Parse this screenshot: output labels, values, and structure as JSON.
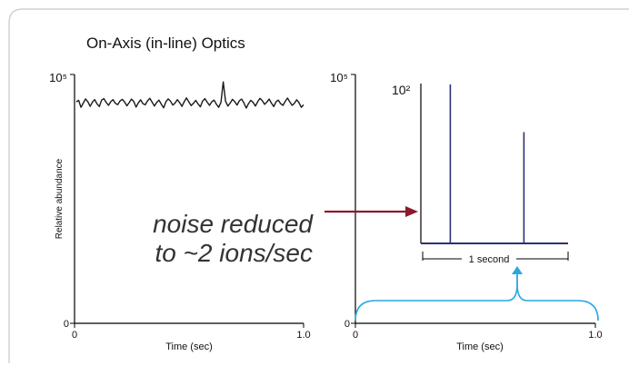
{
  "title": "On-Axis (in-line) Optics",
  "annotation": {
    "line1": "noise reduced",
    "line2": "to ~2 ions/sec"
  },
  "colors": {
    "noise_trace": "#1a1a1a",
    "ion_peaks": "#2e2e7a",
    "arrow": "#8b1a2e",
    "bracket": "#29a8e0",
    "frame": "#c8c8c8"
  },
  "chart_data": [
    {
      "type": "line",
      "title": "On-Axis (in-line) Optics",
      "xlabel": "Time (sec)",
      "ylabel": "Relative abundance",
      "xlim": [
        0,
        1.0
      ],
      "ylim": [
        0,
        100000
      ],
      "y_scale": "linear",
      "y_ticks": [
        "0",
        "10⁵"
      ],
      "x_ticks": [
        "0",
        "1.0"
      ],
      "series": [
        {
          "values": [
            89000,
            89600,
            86800,
            88500,
            90200,
            89100,
            87200,
            88900,
            89900,
            88200,
            87100,
            89700,
            90300,
            88800,
            87600,
            89100,
            89900,
            88400,
            87900,
            89300,
            90000,
            89000,
            87400,
            88700,
            90100,
            89200,
            86900,
            88600,
            89800,
            88300,
            87800,
            89400,
            90400,
            88900,
            87300,
            88800,
            89700,
            88100,
            86600,
            89000,
            90200,
            89300,
            87700,
            88500,
            89900,
            88700,
            87200,
            89100,
            90600,
            89000,
            87500,
            88400,
            89600,
            88200,
            87000,
            89300,
            90300,
            88900,
            87600,
            89000,
            89700,
            88100,
            86800,
            88800,
            97000,
            89300,
            87300,
            88500,
            90000,
            89100,
            87700,
            89400,
            90100,
            88600,
            86500,
            88300,
            89600,
            88800,
            87300,
            89100,
            90400,
            89500,
            88000,
            88900,
            90100,
            88500,
            87100,
            89000,
            89700,
            88300,
            87600,
            89200,
            90500,
            89000,
            87600,
            88400,
            89800,
            88700,
            86800,
            87800
          ]
        }
      ]
    },
    {
      "type": "line",
      "xlabel": "Time (sec)",
      "xlim": [
        0,
        1.0
      ],
      "ylim": [
        0,
        100000
      ],
      "y_ticks": [
        "0",
        "10⁵"
      ],
      "x_ticks": [
        "0",
        "1.0"
      ],
      "inset": {
        "y_tick": "10²",
        "bracket_label": "1 second",
        "baseline": 0,
        "peaks": [
          {
            "position": 0.2,
            "height": 100
          },
          {
            "position": 0.7,
            "height": 70
          }
        ]
      }
    }
  ]
}
